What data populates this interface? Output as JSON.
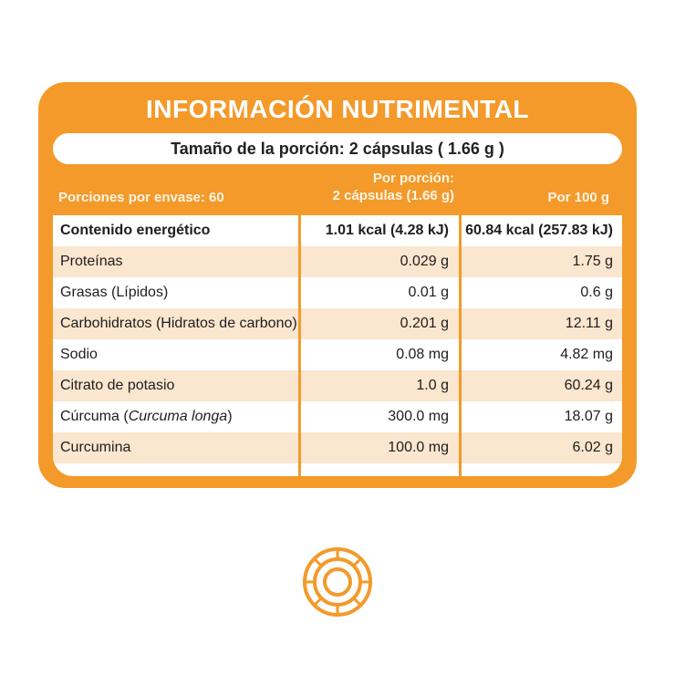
{
  "label": {
    "title": "INFORMACIÓN NUTRIMENTAL",
    "serving_size": "Tamaño de la porción: 2 cápsulas ( 1.66 g )",
    "servings_per_container": "Porciones por envase: 60",
    "per_portion_line1": "Por porción:",
    "per_portion_line2": "2 cápsulas (1.66 g)",
    "per_100g": "Por 100 g"
  },
  "rows": [
    {
      "name": "Contenido energético",
      "per_portion": "1.01 kcal (4.28 kJ)",
      "per_100g": "60.84 kcal (257.83 kJ)"
    },
    {
      "name": "Proteínas",
      "per_portion": "0.029 g",
      "per_100g": "1.75 g"
    },
    {
      "name": "Grasas (Lípidos)",
      "per_portion": "0.01 g",
      "per_100g": "0.6 g"
    },
    {
      "name": "Carbohidratos (Hidratos de carbono)",
      "per_portion": "0.201 g",
      "per_100g": "12.11 g"
    },
    {
      "name": "Sodio",
      "per_portion": "0.08 mg",
      "per_100g": "4.82 mg"
    },
    {
      "name": "Citrato de potasio",
      "per_portion": "1.0 g",
      "per_100g": "60.24 g"
    },
    {
      "name": "Cúrcuma (",
      "name_italic": "Curcuma longa",
      "name_end": ")",
      "per_portion": "300.0 mg",
      "per_100g": "18.07 g"
    },
    {
      "name": "Curcumina",
      "per_portion": "100.0 mg",
      "per_100g": "6.02 g"
    }
  ],
  "colors": {
    "accent": "#f39a2b",
    "row_shade": "#fbe6cf"
  },
  "icons": {
    "bottom": "circular-emblem-icon"
  }
}
